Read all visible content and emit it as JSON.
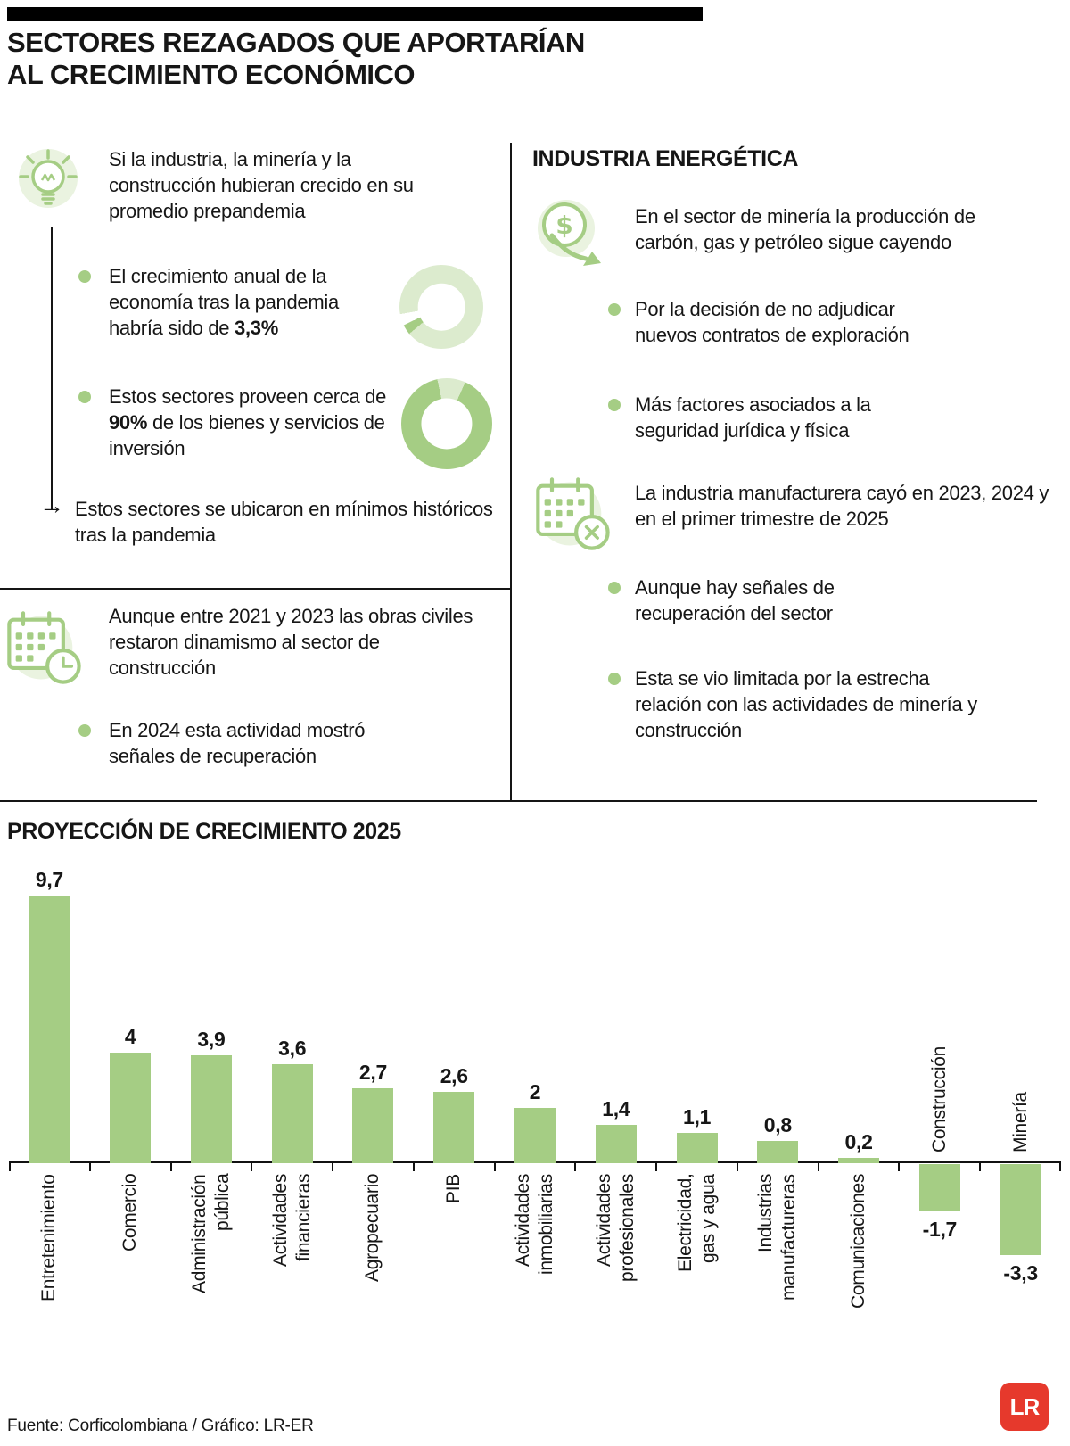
{
  "header": {
    "title_line1": "SECTORES REZAGADOS QUE APORTARÍAN",
    "title_line2": "AL CRECIMIENTO ECONÓMICO"
  },
  "left": {
    "intro": "Si la industria, la minería y la construcción hubieran crecido en su promedio prepandemia",
    "bullet1": {
      "pre": "El crecimiento anual de la economía tras la pandemia habría sido de ",
      "bold": "3,3%",
      "post": ""
    },
    "bullet2": {
      "pre": "Estos sectores proveen cerca de ",
      "bold": "90%",
      "post": " de los bienes y servicios de inversión"
    },
    "arrow_note": "Estos sectores se ubicaron en mínimos históricos tras la pandemia",
    "calendar_note": "Aunque entre 2021 y 2023 las obras civiles restaron dinamismo al sector de construcción",
    "bullet3": "En 2024 esta actividad mostró señales de recuperación"
  },
  "right": {
    "header": "INDUSTRIA ENERGÉTICA",
    "intro": "En el sector de minería la producción de carbón, gas y petróleo sigue cayendo",
    "bullet1": "Por la decisión de no adjudicar nuevos contratos de exploración",
    "bullet2": "Más factores asociados a la seguridad jurídica y física",
    "note2": "La industria manufacturera cayó en 2023, 2024 y en el primer trimestre de 2025",
    "bullet3": "Aunque hay señales de recuperación del sector",
    "bullet4": "Esta se vio limitada por la estrecha relación con las actividades de minería y construcción"
  },
  "chart_data": {
    "type": "bar",
    "title": "PROYECCIÓN DE CRECIMIENTO 2025",
    "categories": [
      "Entretenimiento",
      "Comercio",
      "Administración\npública",
      "Actividades\nfinancieras",
      "Agropecuario",
      "PIB",
      "Actividades\ninmobiliarias",
      "Actividades\nprofesionales",
      "Electricidad,\ngas y agua",
      "Industrias\nmanufactureras",
      "Comunicaciones",
      "Construcción",
      "Minería"
    ],
    "values": [
      9.7,
      4,
      3.9,
      3.6,
      2.7,
      2.6,
      2,
      1.4,
      1.1,
      0.8,
      0.2,
      -1.7,
      -3.3
    ],
    "value_labels": [
      "9,7",
      "4",
      "3,9",
      "3,6",
      "2,7",
      "2,6",
      "2",
      "1,4",
      "1,1",
      "0,8",
      "0,2",
      "-1,7",
      "-3,3"
    ],
    "bar_color": "#a5cd84",
    "ylim": [
      -3.3,
      9.7
    ],
    "grid": false,
    "legend": false
  },
  "footer": {
    "source": "Fuente: Corficolombiana / Gráfico: LR-ER",
    "logo_text": "LR"
  },
  "icons": [
    "lightbulb-icon",
    "calendar-clock-icon",
    "money-decline-icon",
    "calendar-x-icon",
    "arrow-right-icon",
    "bullet-dot"
  ],
  "colors": {
    "green": "#a5cd84",
    "light_green": "#dcebce",
    "logo_red": "#e6392c"
  }
}
